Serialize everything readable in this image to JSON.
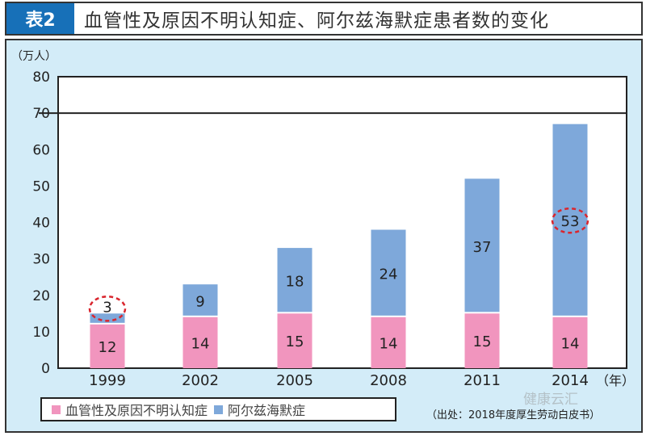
{
  "header": {
    "badge": "表2",
    "title": "血管性及原因不明认知症、阿尔兹海默症患者数的变化"
  },
  "source": "（出处：2018年度厚生劳动白皮书）",
  "watermark": "健康云汇",
  "colors": {
    "vascular": "#f195be",
    "alzheimer": "#7ea8da",
    "highlight": "#d9262e",
    "panel": "#d3ecf8",
    "badge": "#1770b8"
  },
  "chart_data": {
    "type": "bar",
    "stacked": true,
    "title": "血管性及原因不明认知症、阿尔兹海默症患者数的变化",
    "ylabel": "（万人）",
    "xlabel": "（年）",
    "ylim": [
      0,
      80
    ],
    "yticks": [
      0,
      10,
      20,
      30,
      40,
      50,
      60,
      70,
      80
    ],
    "reference_line": 70,
    "categories": [
      "1999",
      "2002",
      "2005",
      "2008",
      "2011",
      "2014"
    ],
    "series": [
      {
        "name": "血管性及原因不明认知症",
        "values": [
          12,
          14,
          15,
          14,
          15,
          14
        ]
      },
      {
        "name": "阿尔兹海默症",
        "values": [
          3,
          9,
          18,
          24,
          37,
          53
        ]
      }
    ],
    "highlighted": [
      {
        "series": 1,
        "index": 0
      },
      {
        "series": 1,
        "index": 5
      }
    ],
    "legend": "bottom-left"
  }
}
